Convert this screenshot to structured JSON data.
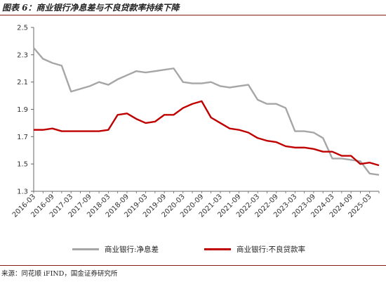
{
  "header": {
    "title": "图表 6：商业银行净息差与不良贷款率持续下降"
  },
  "footer": {
    "source": "来源：同花顺 iFIND，国金证券研究所"
  },
  "chart_data": {
    "type": "line",
    "title": "",
    "xlabel": "",
    "ylabel": "",
    "ylim": [
      1.3,
      2.5
    ],
    "yticks": [
      "1.3",
      "1.5",
      "1.7",
      "1.9",
      "2.1",
      "2.3",
      "2.5"
    ],
    "grid": false,
    "legend_position": "bottom",
    "x_tick_labels": [
      "2016-03",
      "2016-09",
      "2017-03",
      "2017-09",
      "2018-03",
      "2018-09",
      "2019-03",
      "2019-09",
      "2020-03",
      "2020-09",
      "2021-03",
      "2021-09",
      "2022-03",
      "2022-09",
      "2023-03",
      "2023-09",
      "2024-03",
      "2024-09",
      "2025-03"
    ],
    "x": [
      "2016-03",
      "2016-06",
      "2016-09",
      "2016-12",
      "2017-03",
      "2017-06",
      "2017-09",
      "2017-12",
      "2018-03",
      "2018-06",
      "2018-09",
      "2018-12",
      "2019-03",
      "2019-06",
      "2019-09",
      "2019-12",
      "2020-03",
      "2020-06",
      "2020-09",
      "2020-12",
      "2021-03",
      "2021-06",
      "2021-09",
      "2021-12",
      "2022-03",
      "2022-06",
      "2022-09",
      "2022-12",
      "2023-03",
      "2023-06",
      "2023-09",
      "2023-12",
      "2024-03",
      "2024-06",
      "2024-09",
      "2024-12",
      "2025-03",
      "2025-06"
    ],
    "series": [
      {
        "name": "商业银行:净息差",
        "color": "#a6a6a6",
        "values": [
          2.35,
          2.27,
          2.24,
          2.22,
          2.03,
          2.05,
          2.07,
          2.1,
          2.08,
          2.12,
          2.15,
          2.18,
          2.17,
          2.18,
          2.19,
          2.2,
          2.1,
          2.09,
          2.09,
          2.1,
          2.07,
          2.06,
          2.07,
          2.08,
          1.97,
          1.94,
          1.94,
          1.91,
          1.74,
          1.74,
          1.73,
          1.69,
          1.54,
          1.54,
          1.53,
          1.52,
          1.43,
          1.42
        ]
      },
      {
        "name": "商业银行:不良贷款率",
        "color": "#c00000",
        "values": [
          1.75,
          1.75,
          1.76,
          1.74,
          1.74,
          1.74,
          1.74,
          1.74,
          1.75,
          1.86,
          1.87,
          1.83,
          1.8,
          1.81,
          1.86,
          1.86,
          1.91,
          1.94,
          1.96,
          1.84,
          1.8,
          1.76,
          1.75,
          1.73,
          1.69,
          1.67,
          1.66,
          1.63,
          1.62,
          1.62,
          1.61,
          1.59,
          1.59,
          1.56,
          1.56,
          1.5,
          1.51,
          1.49
        ]
      }
    ]
  }
}
